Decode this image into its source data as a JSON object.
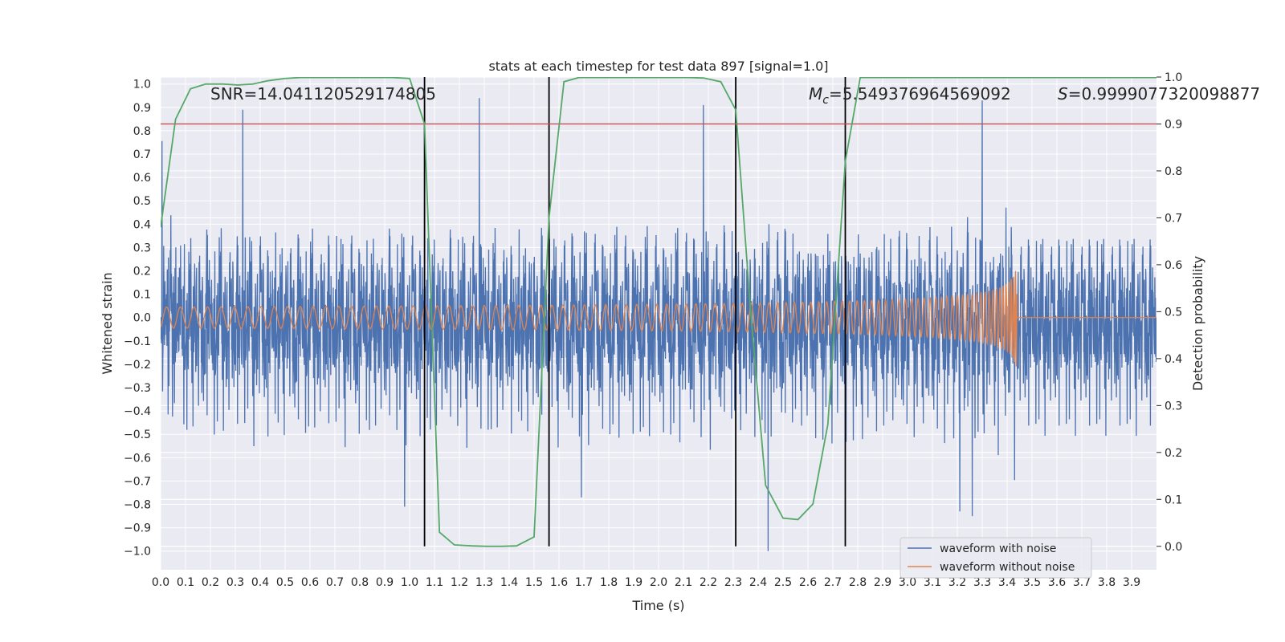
{
  "chart_data": {
    "type": "line",
    "title": "stats at each timestep for test data 897 [signal=1.0]",
    "xlabel": "Time (s)",
    "ylabel_left": "Whitened strain",
    "ylabel_right": "Detection probability",
    "xlim": [
      0.0,
      4.0
    ],
    "ylim_left": [
      -1.08,
      1.03
    ],
    "ylim_right": [
      -0.05,
      1.0
    ],
    "x_ticks": [
      "0.0",
      "0.1",
      "0.2",
      "0.3",
      "0.4",
      "0.5",
      "0.6",
      "0.7",
      "0.8",
      "0.9",
      "1.0",
      "1.1",
      "1.2",
      "1.3",
      "1.4",
      "1.5",
      "1.6",
      "1.7",
      "1.8",
      "1.9",
      "2.0",
      "2.1",
      "2.2",
      "2.3",
      "2.4",
      "2.5",
      "2.6",
      "2.7",
      "2.8",
      "2.9",
      "3.0",
      "3.1",
      "3.2",
      "3.3",
      "3.4",
      "3.5",
      "3.6",
      "3.7",
      "3.8",
      "3.9"
    ],
    "y_ticks_left": [
      "1.0",
      "0.9",
      "0.8",
      "0.7",
      "0.6",
      "0.5",
      "0.4",
      "0.3",
      "0.2",
      "0.1",
      "0.0",
      "−0.1",
      "−0.2",
      "−0.3",
      "−0.4",
      "−0.5",
      "−0.6",
      "−0.7",
      "−0.8",
      "−0.9",
      "−1.0"
    ],
    "y_ticks_right": [
      "1.0",
      "0.9",
      "0.8",
      "0.7",
      "0.6",
      "0.5",
      "0.4",
      "0.3",
      "0.2",
      "0.1",
      "0.0"
    ],
    "annotations": {
      "snr": "SNR=14.041120529174805",
      "mc_symbol": "M",
      "mc_sub": "c",
      "mc_value": "=5.549376964569092",
      "s_symbol": "S",
      "s_value": "=0.9999077320098877"
    },
    "threshold": {
      "axis": "right",
      "value": 0.9,
      "color": "#c44e52"
    },
    "vlines": [
      1.06,
      1.56,
      2.31,
      2.75
    ],
    "series": [
      {
        "name": "waveform with noise",
        "color": "#4c72b0",
        "axis": "left",
        "kind": "noise",
        "std": 0.2,
        "peak_highlights": [
          {
            "x": 0.33,
            "y": 0.89
          },
          {
            "x": 1.28,
            "y": 0.94
          },
          {
            "x": 2.18,
            "y": 0.91
          },
          {
            "x": 3.3,
            "y": 0.93
          },
          {
            "x": 3.21,
            "y": -0.83
          },
          {
            "x": 3.26,
            "y": -0.85
          },
          {
            "x": 2.44,
            "y": -1.0
          },
          {
            "x": 0.98,
            "y": -0.81
          },
          {
            "x": 1.69,
            "y": -0.77
          }
        ]
      },
      {
        "name": "waveform without noise",
        "color": "#dd8452",
        "axis": "left",
        "kind": "chirp",
        "merger_time": 3.44,
        "amplitude_start": 0.045,
        "amplitude_peak": 0.4,
        "frequency_start_hz": 30
      },
      {
        "name": "detection probability",
        "color": "#55a868",
        "axis": "right",
        "kind": "line",
        "x": [
          0.0,
          0.06,
          0.12,
          0.18,
          0.25,
          0.31,
          0.37,
          0.43,
          0.5,
          0.56,
          0.62,
          0.68,
          0.75,
          0.81,
          0.87,
          0.93,
          1.0,
          1.06,
          1.12,
          1.18,
          1.25,
          1.31,
          1.37,
          1.43,
          1.5,
          1.56,
          1.62,
          1.68,
          1.75,
          1.81,
          1.87,
          1.93,
          2.0,
          2.06,
          2.12,
          2.18,
          2.25,
          2.31,
          2.37,
          2.43,
          2.5,
          2.56,
          2.62,
          2.68,
          2.75,
          2.81,
          2.87,
          2.93,
          3.0,
          3.06,
          3.12,
          3.18,
          3.25,
          3.31,
          3.37,
          3.43,
          3.5,
          3.56,
          3.62,
          3.68,
          3.75,
          3.81,
          3.87,
          3.93,
          4.0
        ],
        "y": [
          0.68,
          0.91,
          0.975,
          0.985,
          0.985,
          0.983,
          0.985,
          0.992,
          0.997,
          0.999,
          0.999,
          0.999,
          0.999,
          0.999,
          0.999,
          0.999,
          0.997,
          0.9,
          0.03,
          0.003,
          0.001,
          0.0,
          0.0,
          0.001,
          0.02,
          0.7,
          0.99,
          0.999,
          0.999,
          0.999,
          0.999,
          0.999,
          0.999,
          0.999,
          0.999,
          0.998,
          0.99,
          0.93,
          0.5,
          0.13,
          0.06,
          0.057,
          0.09,
          0.26,
          0.82,
          0.999,
          0.999,
          0.999,
          0.999,
          0.999,
          0.999,
          0.999,
          0.999,
          0.999,
          0.999,
          0.999,
          0.999,
          0.999,
          0.999,
          0.999,
          0.999,
          0.999,
          0.999,
          0.999,
          0.999
        ]
      }
    ],
    "legend": {
      "location": "lower right",
      "entries": [
        "waveform with noise",
        "waveform without noise"
      ]
    },
    "style": {
      "axes_facecolor": "#eaeaf2",
      "grid_color": "#ffffff",
      "grid": true,
      "vline_color": "#000000",
      "right_grid_color": "#ffffff"
    }
  }
}
